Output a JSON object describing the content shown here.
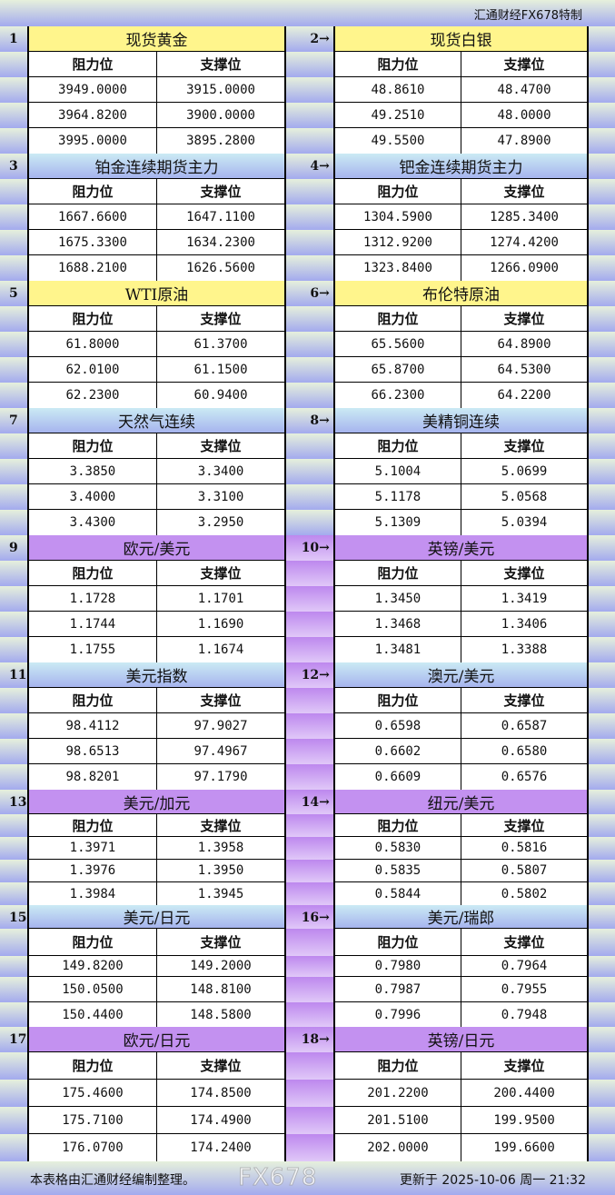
{
  "header": {
    "brand": "汇通财经FX678特制"
  },
  "labels": {
    "resistance": "阻力位",
    "support": "支撑位"
  },
  "colors": {
    "yellow": "#fff58c",
    "blue": "#a6b4ee",
    "purple": "#c391f0"
  },
  "instruments": [
    {
      "num": "1",
      "title": "现货黄金",
      "color": "yellow",
      "rows": [
        [
          "3949.0000",
          "3915.0000"
        ],
        [
          "3964.8200",
          "3900.0000"
        ],
        [
          "3995.0000",
          "3895.2800"
        ]
      ]
    },
    {
      "num": "2→",
      "title": "现货白银",
      "color": "yellow",
      "rows": [
        [
          "48.8610",
          "48.4700"
        ],
        [
          "49.2510",
          "48.0000"
        ],
        [
          "49.5500",
          "47.8900"
        ]
      ]
    },
    {
      "num": "3",
      "title": "铂金连续期货主力",
      "color": "blue",
      "rows": [
        [
          "1667.6600",
          "1647.1100"
        ],
        [
          "1675.3300",
          "1634.2300"
        ],
        [
          "1688.2100",
          "1626.5600"
        ]
      ]
    },
    {
      "num": "4→",
      "title": "钯金连续期货主力",
      "color": "blue",
      "rows": [
        [
          "1304.5900",
          "1285.3400"
        ],
        [
          "1312.9200",
          "1274.4200"
        ],
        [
          "1323.8400",
          "1266.0900"
        ]
      ]
    },
    {
      "num": "5",
      "title": "WTI原油",
      "color": "yellow",
      "rows": [
        [
          "61.8000",
          "61.3700"
        ],
        [
          "62.0100",
          "61.1500"
        ],
        [
          "62.2300",
          "60.9400"
        ]
      ]
    },
    {
      "num": "6→",
      "title": "布伦特原油",
      "color": "yellow",
      "rows": [
        [
          "65.5600",
          "64.8900"
        ],
        [
          "65.8700",
          "64.5300"
        ],
        [
          "66.2300",
          "64.2200"
        ]
      ]
    },
    {
      "num": "7",
      "title": "天然气连续",
      "color": "blue",
      "rows": [
        [
          "3.3850",
          "3.3400"
        ],
        [
          "3.4000",
          "3.3100"
        ],
        [
          "3.4300",
          "3.2950"
        ]
      ]
    },
    {
      "num": "8→",
      "title": "美精铜连续",
      "color": "blue",
      "rows": [
        [
          "5.1004",
          "5.0699"
        ],
        [
          "5.1178",
          "5.0568"
        ],
        [
          "5.1309",
          "5.0394"
        ]
      ]
    },
    {
      "num": "9",
      "title": "欧元/美元",
      "color": "purple",
      "rows": [
        [
          "1.1728",
          "1.1701"
        ],
        [
          "1.1744",
          "1.1690"
        ],
        [
          "1.1755",
          "1.1674"
        ]
      ]
    },
    {
      "num": "10→",
      "title": "英镑/美元",
      "color": "purple",
      "rows": [
        [
          "1.3450",
          "1.3419"
        ],
        [
          "1.3468",
          "1.3406"
        ],
        [
          "1.3481",
          "1.3388"
        ]
      ]
    },
    {
      "num": "11",
      "title": "美元指数",
      "color": "blue",
      "rows": [
        [
          "98.4112",
          "97.9027"
        ],
        [
          "98.6513",
          "97.4967"
        ],
        [
          "98.8201",
          "97.1790"
        ]
      ]
    },
    {
      "num": "12→",
      "title": "澳元/美元",
      "color": "blue",
      "rows": [
        [
          "0.6598",
          "0.6587"
        ],
        [
          "0.6602",
          "0.6580"
        ],
        [
          "0.6609",
          "0.6576"
        ]
      ]
    },
    {
      "num": "13",
      "title": "美元/加元",
      "color": "purple",
      "rows": [
        [
          "1.3971",
          "1.3958"
        ],
        [
          "1.3976",
          "1.3950"
        ],
        [
          "1.3984",
          "1.3945"
        ]
      ]
    },
    {
      "num": "14→",
      "title": "纽元/美元",
      "color": "purple",
      "rows": [
        [
          "0.5830",
          "0.5816"
        ],
        [
          "0.5835",
          "0.5807"
        ],
        [
          "0.5844",
          "0.5802"
        ]
      ]
    },
    {
      "num": "15",
      "title": "美元/日元",
      "color": "blue",
      "rows": [
        [
          "149.8200",
          "149.2000"
        ],
        [
          "150.0500",
          "148.8100"
        ],
        [
          "150.4400",
          "148.5800"
        ]
      ]
    },
    {
      "num": "16→",
      "title": "美元/瑞郎",
      "color": "blue",
      "rows": [
        [
          "0.7980",
          "0.7964"
        ],
        [
          "0.7987",
          "0.7955"
        ],
        [
          "0.7996",
          "0.7948"
        ]
      ]
    },
    {
      "num": "17",
      "title": "欧元/日元",
      "color": "purple",
      "rows": [
        [
          "175.4600",
          "174.8500"
        ],
        [
          "175.7100",
          "174.4900"
        ],
        [
          "176.0700",
          "174.2400"
        ]
      ]
    },
    {
      "num": "18→",
      "title": "英镑/日元",
      "color": "purple",
      "rows": [
        [
          "201.2200",
          "200.4400"
        ],
        [
          "201.5100",
          "199.9500"
        ],
        [
          "202.0000",
          "199.6600"
        ]
      ]
    }
  ],
  "footer": {
    "note": "本表格由汇通财经编制整理。",
    "updated": "更新于 2025-10-06 周一 21:32"
  },
  "watermark": "FX678"
}
